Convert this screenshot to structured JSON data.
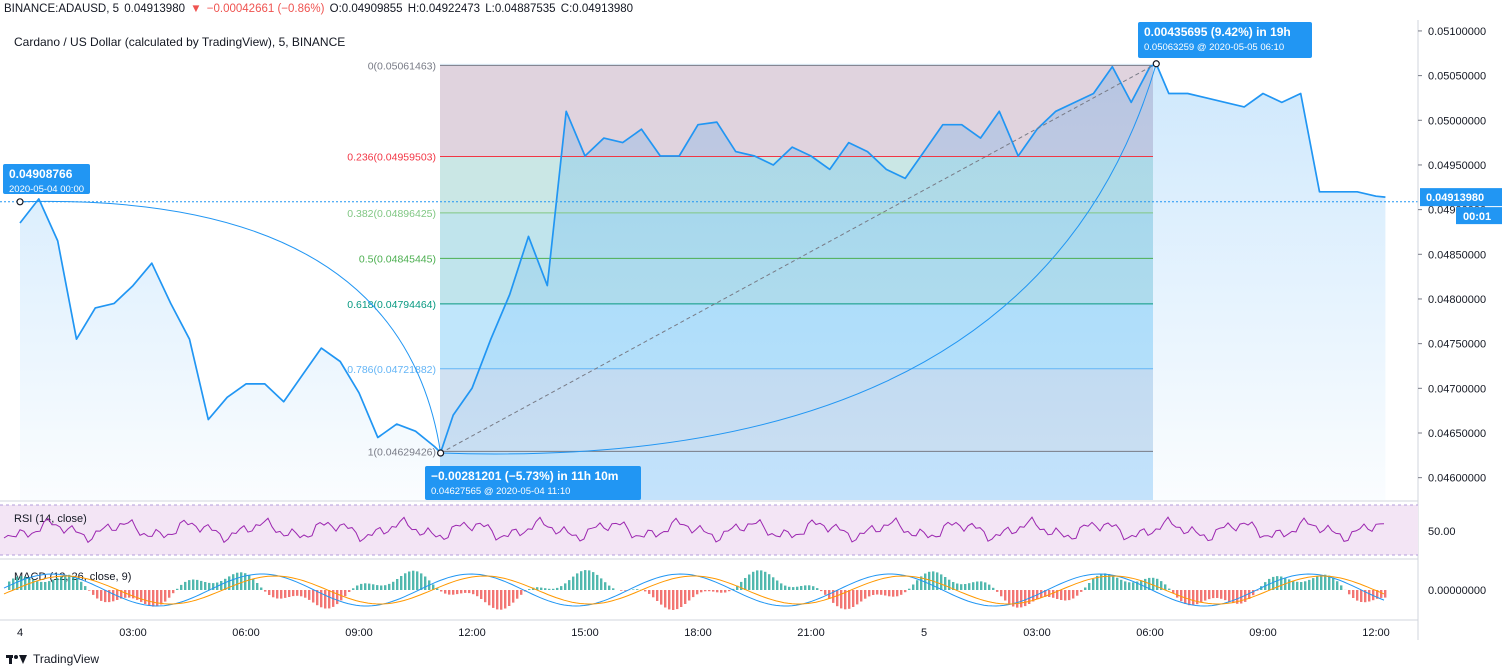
{
  "header": {
    "symbol": "BINANCE:ADAUSD, 5",
    "last": "0.04913980",
    "change_arrow": "▼",
    "change": "−0.00042661 (−0.86%)",
    "open": "O:0.04909855",
    "high": "H:0.04922473",
    "low": "L:0.04887535",
    "close": "C:0.04913980"
  },
  "subtitle": "Cardano / US Dollar (calculated by TradingView), 5, BINANCE",
  "price_axis": {
    "ticks": [
      "0.05100000",
      "0.05050000",
      "0.05000000",
      "0.04950000",
      "0.04900000",
      "0.04850000",
      "0.04800000",
      "0.04750000",
      "0.04700000",
      "0.04650000",
      "0.04600000"
    ],
    "tick_values": [
      0.051,
      0.0505,
      0.05,
      0.0495,
      0.049,
      0.0485,
      0.048,
      0.0475,
      0.047,
      0.0465,
      0.046
    ],
    "current_price": "0.04913980",
    "countdown": "00:01"
  },
  "time_axis": {
    "labels": [
      "4",
      "03:00",
      "06:00",
      "09:00",
      "12:00",
      "15:00",
      "18:00",
      "21:00",
      "5",
      "03:00",
      "06:00",
      "09:00",
      "12:00"
    ]
  },
  "fib": {
    "levels": [
      {
        "label": "0(0.05061463)",
        "price": 0.05061463,
        "color": "#787b86"
      },
      {
        "label": "0.236(0.04959503)",
        "price": 0.04959503,
        "color": "#f23645"
      },
      {
        "label": "0.382(0.04896425)",
        "price": 0.04896425,
        "color": "#81c784"
      },
      {
        "label": "0.5(0.04845445)",
        "price": 0.04845445,
        "color": "#4caf50"
      },
      {
        "label": "0.618(0.04794464)",
        "price": 0.04794464,
        "color": "#089981"
      },
      {
        "label": "0.786(0.04721882)",
        "price": 0.04721882,
        "color": "#64b5f6"
      },
      {
        "label": "1(0.04629426)",
        "price": 0.04629426,
        "color": "#787b86"
      }
    ]
  },
  "callouts": {
    "start": {
      "value": "0.04908766",
      "date": "2020-05-04 00:00"
    },
    "low": {
      "main": "−0.00281201 (−5.73%) in 11h 10m",
      "sub": "0.04627565 @ 2020-05-04  11:10"
    },
    "high": {
      "main": "0.00435695 (9.42%) in 19h",
      "sub": "0.05063259 @ 2020-05-05  06:10"
    }
  },
  "rsi": {
    "label": "RSI (14, close)",
    "level": "50.00"
  },
  "macd": {
    "label": "MACD (12, 26, close, 9)",
    "level": "0.00000000"
  },
  "footer": {
    "brand": "TradingView"
  },
  "colors": {
    "line": "#2196f3",
    "up": "#26a69a",
    "down": "#ef5350",
    "rsi": "#9c27b0",
    "macd_signal": "#ff9800"
  },
  "chart_data": {
    "type": "line",
    "title": "Cardano / US Dollar (calculated by TradingView), 5, BINANCE",
    "series": [
      {
        "name": "",
        "x": [
          "2020-05-04 00:00",
          "00:30",
          "01:00",
          "01:30",
          "02:00",
          "02:30",
          "03:00",
          "03:30",
          "04:00",
          "04:30",
          "05:00",
          "05:30",
          "06:00",
          "06:30",
          "07:00",
          "07:30",
          "08:00",
          "08:30",
          "09:00",
          "09:30",
          "10:00",
          "10:30",
          "11:00",
          "11:10",
          "11:30",
          "12:00",
          "12:30",
          "13:00",
          "13:30",
          "14:00",
          "14:30",
          "15:00",
          "15:30",
          "16:00",
          "16:30",
          "17:00",
          "17:30",
          "18:00",
          "18:30",
          "19:00",
          "19:30",
          "20:00",
          "20:30",
          "21:00",
          "21:30",
          "22:00",
          "22:30",
          "23:00",
          "23:30",
          "2020-05-05 00:00",
          "00:30",
          "01:00",
          "01:30",
          "02:00",
          "02:30",
          "03:00",
          "03:30",
          "04:00",
          "04:30",
          "05:00",
          "05:30",
          "06:00",
          "06:10",
          "06:30",
          "07:00",
          "07:30",
          "08:00",
          "08:30",
          "09:00",
          "09:30",
          "10:00",
          "10:30",
          "11:00",
          "11:30",
          "12:00",
          "12:15"
        ],
        "y": [
          0.04885,
          0.04912,
          0.04865,
          0.04755,
          0.0479,
          0.04795,
          0.04815,
          0.0484,
          0.04795,
          0.04755,
          0.04665,
          0.0469,
          0.04705,
          0.04705,
          0.04685,
          0.04715,
          0.04745,
          0.0473,
          0.04695,
          0.04645,
          0.0466,
          0.04652,
          0.04635,
          0.04628,
          0.0467,
          0.047,
          0.04755,
          0.04805,
          0.0487,
          0.04815,
          0.0501,
          0.0496,
          0.0498,
          0.04975,
          0.0499,
          0.0496,
          0.0496,
          0.04995,
          0.04998,
          0.04965,
          0.0496,
          0.0495,
          0.0497,
          0.0496,
          0.04945,
          0.04975,
          0.04965,
          0.04945,
          0.04935,
          0.04965,
          0.04995,
          0.04995,
          0.0498,
          0.0501,
          0.0496,
          0.0499,
          0.0501,
          0.0502,
          0.0503,
          0.0506,
          0.0502,
          0.0506,
          0.05063,
          0.0503,
          0.0503,
          0.05025,
          0.0502,
          0.05015,
          0.0503,
          0.0502,
          0.0503,
          0.0492,
          0.0492,
          0.0492,
          0.04915,
          0.04914
        ]
      }
    ],
    "xlabel": "",
    "ylabel": "",
    "ylim": [
      0.04575,
      0.0511
    ],
    "grid": false,
    "legend": "none"
  }
}
